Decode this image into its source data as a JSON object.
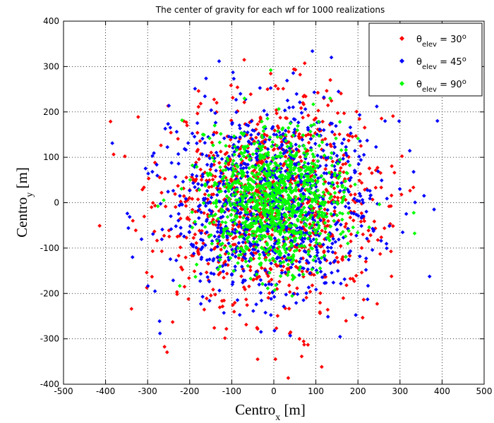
{
  "chart_data": {
    "type": "scatter",
    "title": "The center of gravity for each wf for 1000 realizations",
    "xlabel": {
      "base": "Centro",
      "sub": "x",
      "unit": " [m]"
    },
    "ylabel": {
      "base": "Centro",
      "sub": "y",
      "unit": " [m]"
    },
    "xlim": [
      -500,
      500
    ],
    "ylim": [
      -400,
      400
    ],
    "xticks": [
      -500,
      -400,
      -300,
      -200,
      -100,
      0,
      100,
      200,
      300,
      400,
      500
    ],
    "yticks": [
      -400,
      -300,
      -200,
      -100,
      0,
      100,
      200,
      300,
      400
    ],
    "grid": true,
    "grid_style": "dotted",
    "legend_position": "top-right",
    "points_per_series": 1000,
    "series": [
      {
        "name": "θelev = 30°",
        "symbol": "θ",
        "sub": "elev",
        "value": " = 30",
        "sup": "o",
        "color": "#ff0000",
        "mean": [
          0,
          0
        ],
        "std": [
          130,
          115
        ]
      },
      {
        "name": "θelev = 45°",
        "symbol": "θ",
        "sub": "elev",
        "value": " = 45",
        "sup": "o",
        "color": "#0000ff",
        "mean": [
          0,
          0
        ],
        "std": [
          125,
          112
        ]
      },
      {
        "name": "θelev = 90°",
        "symbol": "θ",
        "sub": "elev",
        "value": " = 90",
        "sup": "o",
        "color": "#00ff00",
        "mean": [
          0,
          0
        ],
        "std": [
          85,
          75
        ]
      }
    ]
  }
}
